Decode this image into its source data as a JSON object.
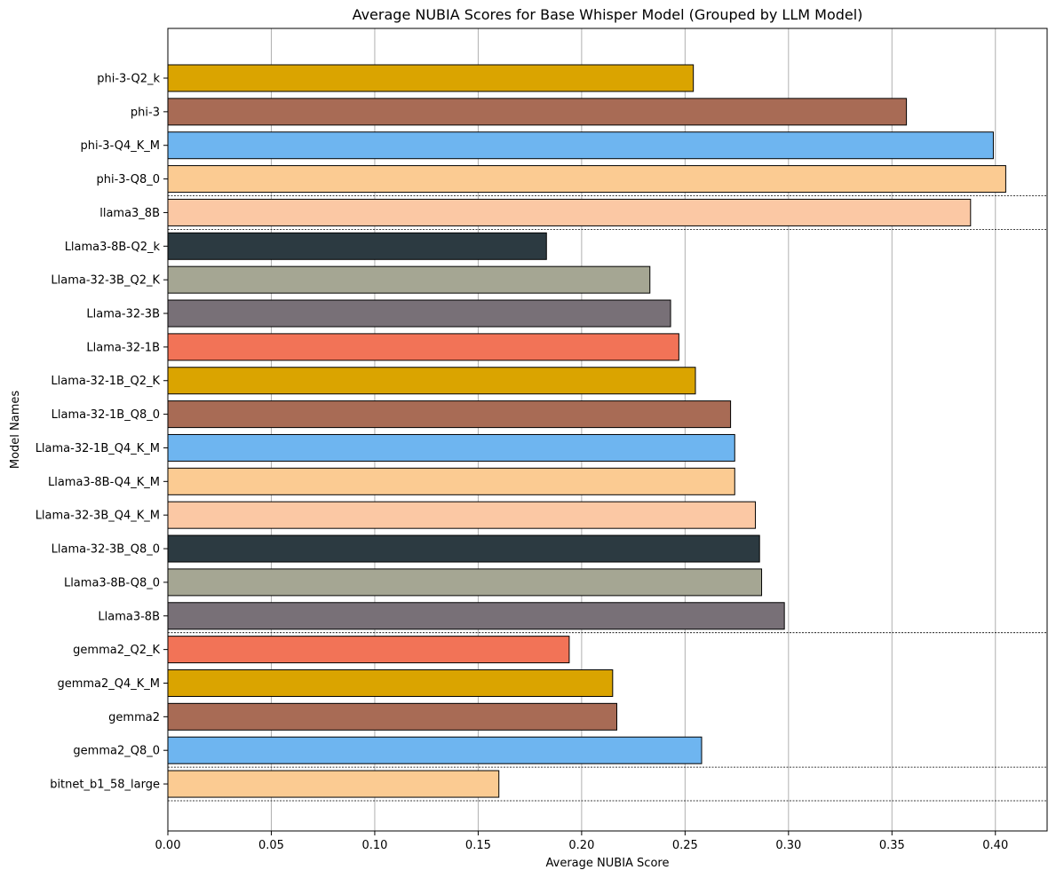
{
  "chart_data": {
    "type": "bar",
    "orientation": "horizontal",
    "title": "Average NUBIA Scores for Base Whisper Model (Grouped by LLM Model)",
    "xlabel": "Average NUBIA Score",
    "ylabel": "Model Names",
    "xlim": [
      0,
      0.425
    ],
    "xticks": [
      0.0,
      0.05,
      0.1,
      0.15,
      0.2,
      0.25,
      0.3,
      0.35,
      0.4
    ],
    "xtick_labels": [
      "0.00",
      "0.05",
      "0.10",
      "0.15",
      "0.20",
      "0.25",
      "0.30",
      "0.35",
      "0.40"
    ],
    "grid": "x",
    "legend": "none",
    "categories": [
      "phi-3-Q2_k",
      "phi-3",
      "phi-3-Q4_K_M",
      "phi-3-Q8_0",
      "llama3_8B",
      "Llama3-8B-Q2_k",
      "Llama-32-3B_Q2_K",
      "Llama-32-3B",
      "Llama-32-1B",
      "Llama-32-1B_Q2_K",
      "Llama-32-1B_Q8_0",
      "Llama-32-1B_Q4_K_M",
      "Llama3-8B-Q4_K_M",
      "Llama-32-3B_Q4_K_M",
      "Llama-32-3B_Q8_0",
      "Llama3-8B-Q8_0",
      "Llama3-8B",
      "gemma2_Q2_K",
      "gemma2_Q4_K_M",
      "gemma2",
      "gemma2_Q8_0",
      "bitnet_b1_58_large"
    ],
    "values": [
      0.254,
      0.357,
      0.399,
      0.405,
      0.388,
      0.183,
      0.233,
      0.243,
      0.247,
      0.255,
      0.272,
      0.274,
      0.274,
      0.284,
      0.286,
      0.287,
      0.298,
      0.194,
      0.215,
      0.217,
      0.258,
      0.16
    ],
    "colors": [
      "#DAA400",
      "#A86B55",
      "#6EB5F0",
      "#FBCB92",
      "#FBC8A4",
      "#2C3A41",
      "#A5A693",
      "#787077",
      "#F27357",
      "#DAA400",
      "#A86B55",
      "#6EB5F0",
      "#FBCB92",
      "#FBC8A4",
      "#2C3A41",
      "#A5A693",
      "#787077",
      "#F27357",
      "#DAA400",
      "#A86B55",
      "#6EB5F0",
      "#FBCB92"
    ],
    "group_separators_after": [
      "phi-3-Q8_0",
      "llama3_8B",
      "Llama3-8B",
      "gemma2_Q8_0",
      "bitnet_b1_58_large"
    ]
  }
}
